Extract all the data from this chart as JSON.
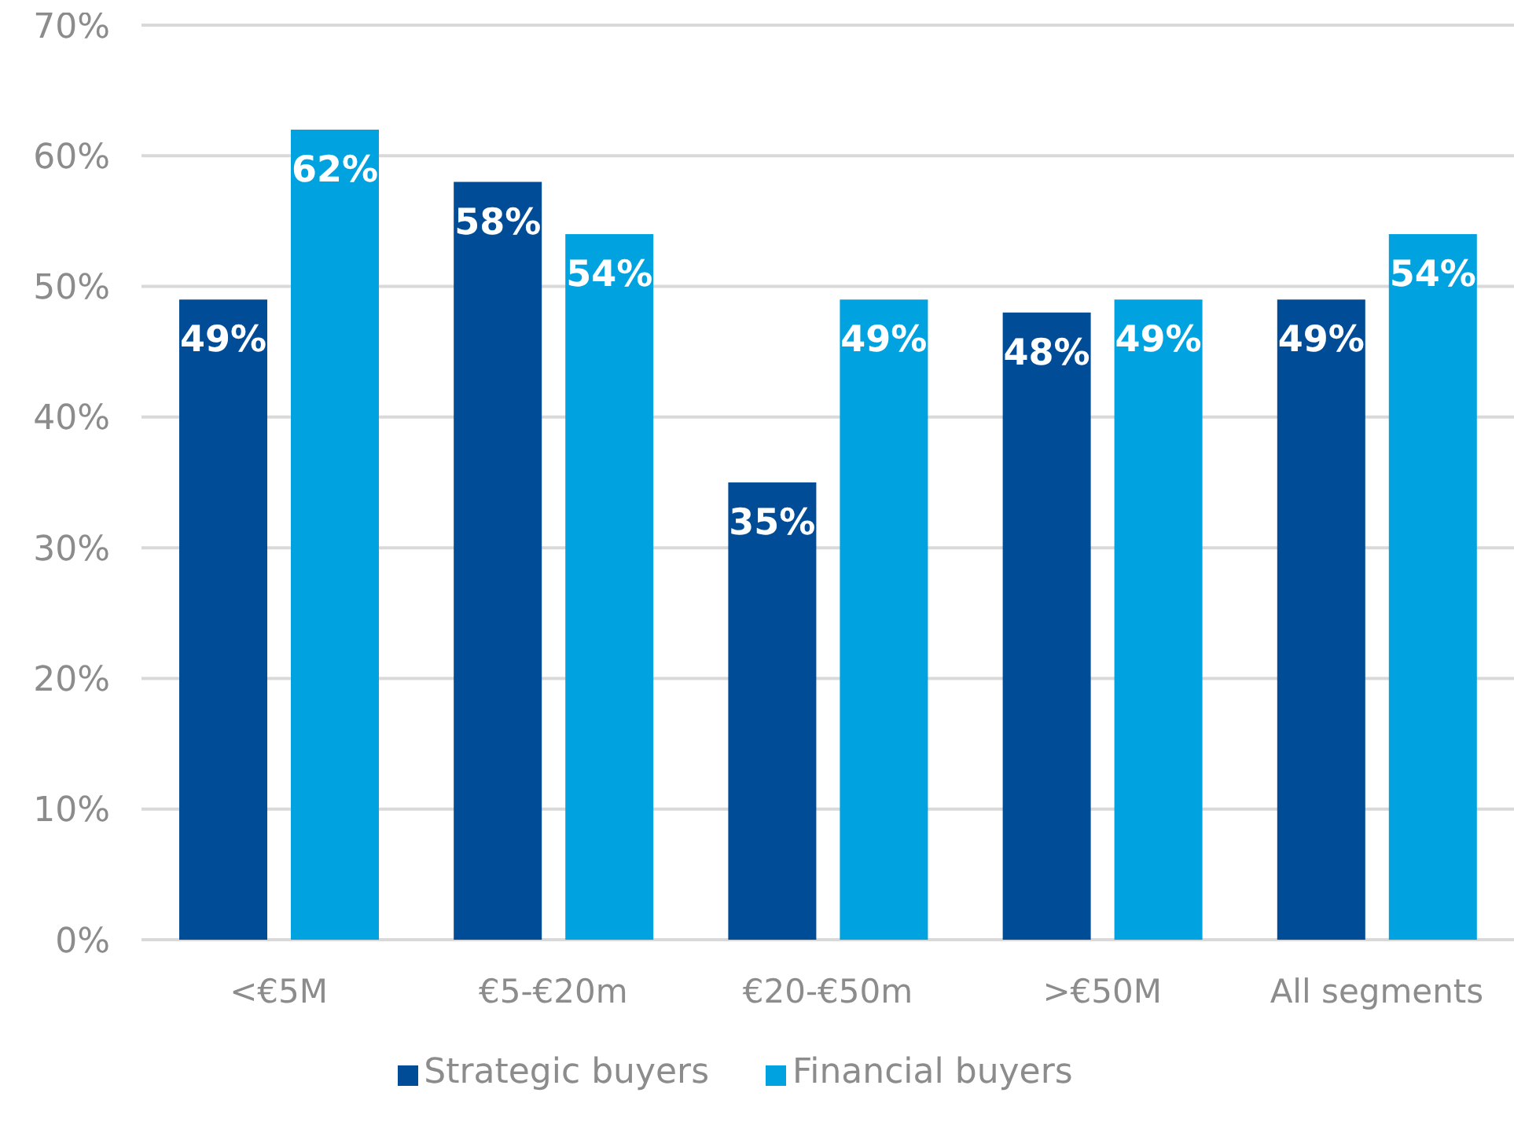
{
  "chart_data": {
    "type": "bar",
    "categories": [
      "<€5M",
      "€5-€20m",
      "€20-€50m",
      ">€50M",
      "All segments"
    ],
    "series": [
      {
        "name": "Strategic buyers",
        "color": "#004c97",
        "values": [
          49,
          58,
          35,
          48,
          49
        ],
        "value_labels": [
          "49%",
          "58%",
          "35%",
          "48%",
          "49%"
        ]
      },
      {
        "name": "Financial buyers",
        "color": "#00a3e0",
        "values": [
          62,
          54,
          49,
          49,
          54
        ],
        "value_labels": [
          "62%",
          "54%",
          "49%",
          "49%",
          "54%"
        ]
      }
    ],
    "ylim": [
      0,
      70
    ],
    "yticks": [
      {
        "value": 0,
        "label": "0%"
      },
      {
        "value": 10,
        "label": "10%"
      },
      {
        "value": 20,
        "label": "20%"
      },
      {
        "value": 30,
        "label": "30%"
      },
      {
        "value": 40,
        "label": "40%"
      },
      {
        "value": 50,
        "label": "50%"
      },
      {
        "value": 60,
        "label": "60%"
      },
      {
        "value": 70,
        "label": "70%"
      }
    ],
    "grid": "y",
    "legend": "bottom"
  }
}
